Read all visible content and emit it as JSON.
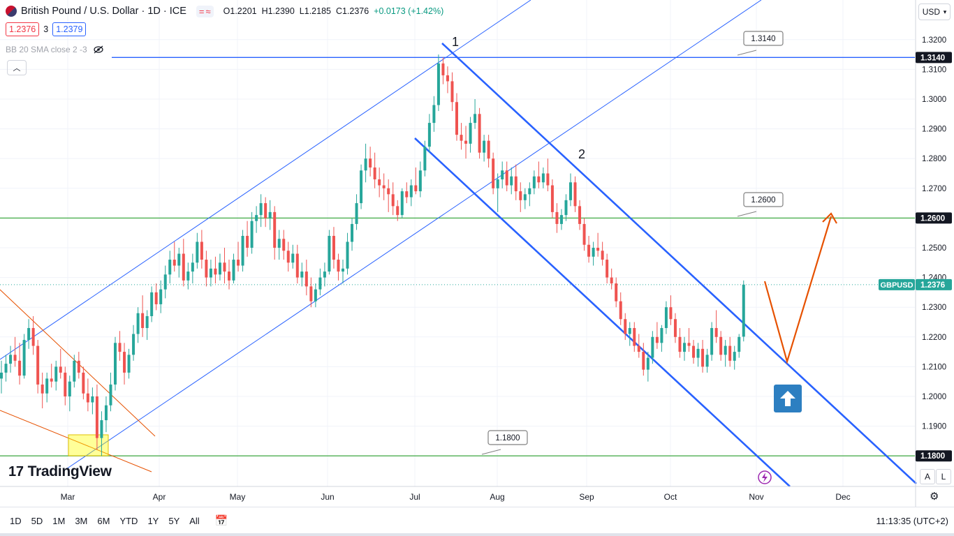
{
  "header": {
    "symbol_title": "British Pound / U.S. Dollar · 1D · ICE",
    "ohlc": {
      "o": "O1.2201",
      "h": "H1.2390",
      "l": "L1.2185",
      "c": "C1.2376",
      "chg": "+0.0173 (+1.42%)"
    },
    "bid": "1.2376",
    "spread": "3",
    "ask": "1.2379",
    "indicator": "BB 20 SMA close 2 -3",
    "currency": "USD"
  },
  "chart_data": {
    "type": "candlestick",
    "symbol": "GBPUSD",
    "last_price": "1.2376",
    "y_ticks": [
      "1.3200",
      "1.3100",
      "1.3000",
      "1.2900",
      "1.2800",
      "1.2700",
      "1.2600",
      "1.2500",
      "1.2400",
      "1.2300",
      "1.2200",
      "1.2100",
      "1.2000",
      "1.1900",
      "1.1800"
    ],
    "x_ticks": [
      "Mar",
      "Apr",
      "May",
      "Jun",
      "Jul",
      "Aug",
      "Sep",
      "Oct",
      "Nov",
      "Dec"
    ],
    "ylim": [
      1.17,
      1.333
    ],
    "horizontal_levels": [
      {
        "value": "1.3140",
        "color": "#2962ff"
      },
      {
        "value": "1.2600",
        "color": "#4caf50"
      },
      {
        "value": "1.1800",
        "color": "#4caf50"
      }
    ],
    "callouts": [
      "1.3140",
      "1.2600",
      "1.1800"
    ],
    "wave_labels": [
      "1",
      "2"
    ],
    "candles": [
      [
        1.206,
        1.212,
        1.201,
        1.208
      ],
      [
        1.208,
        1.214,
        1.205,
        1.211
      ],
      [
        1.211,
        1.217,
        1.208,
        1.214
      ],
      [
        1.214,
        1.22,
        1.21,
        1.212
      ],
      [
        1.212,
        1.218,
        1.204,
        1.207
      ],
      [
        1.207,
        1.221,
        1.206,
        1.219
      ],
      [
        1.219,
        1.226,
        1.216,
        1.223
      ],
      [
        1.223,
        1.227,
        1.214,
        1.217
      ],
      [
        1.217,
        1.219,
        1.201,
        1.204
      ],
      [
        1.204,
        1.208,
        1.196,
        1.201
      ],
      [
        1.201,
        1.208,
        1.198,
        1.206
      ],
      [
        1.206,
        1.211,
        1.203,
        1.205
      ],
      [
        1.205,
        1.212,
        1.202,
        1.21
      ],
      [
        1.21,
        1.216,
        1.206,
        1.208
      ],
      [
        1.208,
        1.21,
        1.197,
        1.2
      ],
      [
        1.2,
        1.207,
        1.195,
        1.205
      ],
      [
        1.205,
        1.214,
        1.203,
        1.212
      ],
      [
        1.212,
        1.215,
        1.206,
        1.208
      ],
      [
        1.208,
        1.21,
        1.199,
        1.201
      ],
      [
        1.201,
        1.206,
        1.195,
        1.198
      ],
      [
        1.198,
        1.203,
        1.194,
        1.2
      ],
      [
        1.2,
        1.204,
        1.182,
        1.186
      ],
      [
        1.186,
        1.195,
        1.18,
        1.192
      ],
      [
        1.192,
        1.2,
        1.188,
        1.197
      ],
      [
        1.197,
        1.208,
        1.195,
        1.204
      ],
      [
        1.204,
        1.22,
        1.202,
        1.218
      ],
      [
        1.218,
        1.222,
        1.212,
        1.215
      ],
      [
        1.215,
        1.218,
        1.204,
        1.208
      ],
      [
        1.208,
        1.216,
        1.206,
        1.214
      ],
      [
        1.214,
        1.224,
        1.212,
        1.221
      ],
      [
        1.221,
        1.23,
        1.218,
        1.228
      ],
      [
        1.228,
        1.234,
        1.22,
        1.223
      ],
      [
        1.223,
        1.229,
        1.219,
        1.227
      ],
      [
        1.227,
        1.237,
        1.225,
        1.235
      ],
      [
        1.235,
        1.238,
        1.229,
        1.231
      ],
      [
        1.231,
        1.239,
        1.228,
        1.236
      ],
      [
        1.236,
        1.244,
        1.233,
        1.241
      ],
      [
        1.241,
        1.249,
        1.238,
        1.246
      ],
      [
        1.246,
        1.252,
        1.242,
        1.244
      ],
      [
        1.244,
        1.25,
        1.24,
        1.248
      ],
      [
        1.248,
        1.253,
        1.237,
        1.239
      ],
      [
        1.239,
        1.245,
        1.236,
        1.242
      ],
      [
        1.242,
        1.248,
        1.238,
        1.245
      ],
      [
        1.245,
        1.255,
        1.243,
        1.252
      ],
      [
        1.252,
        1.256,
        1.243,
        1.246
      ],
      [
        1.246,
        1.249,
        1.237,
        1.24
      ],
      [
        1.24,
        1.246,
        1.237,
        1.243
      ],
      [
        1.243,
        1.247,
        1.238,
        1.241
      ],
      [
        1.241,
        1.248,
        1.239,
        1.245
      ],
      [
        1.245,
        1.25,
        1.238,
        1.242
      ],
      [
        1.242,
        1.246,
        1.236,
        1.239
      ],
      [
        1.239,
        1.248,
        1.238,
        1.246
      ],
      [
        1.246,
        1.252,
        1.242,
        1.244
      ],
      [
        1.244,
        1.256,
        1.242,
        1.254
      ],
      [
        1.254,
        1.259,
        1.247,
        1.25
      ],
      [
        1.25,
        1.262,
        1.248,
        1.259
      ],
      [
        1.259,
        1.264,
        1.255,
        1.261
      ],
      [
        1.261,
        1.268,
        1.257,
        1.265
      ],
      [
        1.265,
        1.267,
        1.257,
        1.26
      ],
      [
        1.26,
        1.266,
        1.256,
        1.262
      ],
      [
        1.262,
        1.264,
        1.246,
        1.25
      ],
      [
        1.25,
        1.256,
        1.246,
        1.253
      ],
      [
        1.253,
        1.256,
        1.246,
        1.249
      ],
      [
        1.249,
        1.252,
        1.242,
        1.245
      ],
      [
        1.245,
        1.251,
        1.243,
        1.248
      ],
      [
        1.248,
        1.251,
        1.238,
        1.24
      ],
      [
        1.24,
        1.245,
        1.237,
        1.242
      ],
      [
        1.242,
        1.246,
        1.234,
        1.237
      ],
      [
        1.237,
        1.24,
        1.23,
        1.232
      ],
      [
        1.232,
        1.238,
        1.23,
        1.236
      ],
      [
        1.236,
        1.243,
        1.234,
        1.24
      ],
      [
        1.24,
        1.245,
        1.237,
        1.242
      ],
      [
        1.242,
        1.256,
        1.241,
        1.254
      ],
      [
        1.254,
        1.257,
        1.243,
        1.246
      ],
      [
        1.246,
        1.248,
        1.239,
        1.242
      ],
      [
        1.242,
        1.246,
        1.238,
        1.243
      ],
      [
        1.243,
        1.255,
        1.241,
        1.252
      ],
      [
        1.252,
        1.26,
        1.249,
        1.258
      ],
      [
        1.258,
        1.268,
        1.256,
        1.265
      ],
      [
        1.265,
        1.278,
        1.263,
        1.276
      ],
      [
        1.276,
        1.285,
        1.272,
        1.28
      ],
      [
        1.28,
        1.284,
        1.274,
        1.277
      ],
      [
        1.277,
        1.282,
        1.27,
        1.273
      ],
      [
        1.273,
        1.277,
        1.267,
        1.271
      ],
      [
        1.271,
        1.275,
        1.266,
        1.27
      ],
      [
        1.27,
        1.273,
        1.262,
        1.268
      ],
      [
        1.268,
        1.272,
        1.261,
        1.264
      ],
      [
        1.264,
        1.266,
        1.259,
        1.261
      ],
      [
        1.261,
        1.27,
        1.26,
        1.269
      ],
      [
        1.269,
        1.272,
        1.265,
        1.267
      ],
      [
        1.267,
        1.273,
        1.264,
        1.271
      ],
      [
        1.271,
        1.277,
        1.268,
        1.269
      ],
      [
        1.269,
        1.279,
        1.267,
        1.276
      ],
      [
        1.276,
        1.286,
        1.274,
        1.284
      ],
      [
        1.284,
        1.295,
        1.282,
        1.292
      ],
      [
        1.292,
        1.301,
        1.289,
        1.298
      ],
      [
        1.298,
        1.315,
        1.296,
        1.312
      ],
      [
        1.312,
        1.314,
        1.305,
        1.308
      ],
      [
        1.308,
        1.311,
        1.302,
        1.306
      ],
      [
        1.306,
        1.309,
        1.296,
        1.299
      ],
      [
        1.299,
        1.302,
        1.286,
        1.288
      ],
      [
        1.288,
        1.292,
        1.283,
        1.286
      ],
      [
        1.286,
        1.291,
        1.28,
        1.285
      ],
      [
        1.285,
        1.294,
        1.282,
        1.292
      ],
      [
        1.292,
        1.3,
        1.29,
        1.295
      ],
      [
        1.295,
        1.297,
        1.28,
        1.282
      ],
      [
        1.282,
        1.288,
        1.279,
        1.286
      ],
      [
        1.286,
        1.288,
        1.277,
        1.28
      ],
      [
        1.28,
        1.282,
        1.268,
        1.27
      ],
      [
        1.27,
        1.275,
        1.262,
        1.273
      ],
      [
        1.273,
        1.279,
        1.27,
        1.276
      ],
      [
        1.276,
        1.279,
        1.269,
        1.271
      ],
      [
        1.271,
        1.277,
        1.268,
        1.274
      ],
      [
        1.274,
        1.278,
        1.266,
        1.269
      ],
      [
        1.269,
        1.272,
        1.262,
        1.266
      ],
      [
        1.266,
        1.27,
        1.263,
        1.268
      ],
      [
        1.268,
        1.272,
        1.264,
        1.27
      ],
      [
        1.27,
        1.276,
        1.268,
        1.274
      ],
      [
        1.274,
        1.279,
        1.27,
        1.272
      ],
      [
        1.272,
        1.277,
        1.27,
        1.275
      ],
      [
        1.275,
        1.28,
        1.269,
        1.271
      ],
      [
        1.271,
        1.273,
        1.26,
        1.262
      ],
      [
        1.262,
        1.265,
        1.255,
        1.258
      ],
      [
        1.258,
        1.263,
        1.256,
        1.261
      ],
      [
        1.261,
        1.268,
        1.259,
        1.266
      ],
      [
        1.266,
        1.275,
        1.264,
        1.272
      ],
      [
        1.272,
        1.274,
        1.262,
        1.264
      ],
      [
        1.264,
        1.266,
        1.256,
        1.258
      ],
      [
        1.258,
        1.26,
        1.249,
        1.251
      ],
      [
        1.251,
        1.254,
        1.245,
        1.247
      ],
      [
        1.247,
        1.252,
        1.244,
        1.25
      ],
      [
        1.25,
        1.255,
        1.247,
        1.249
      ],
      [
        1.249,
        1.252,
        1.244,
        1.246
      ],
      [
        1.246,
        1.248,
        1.238,
        1.24
      ],
      [
        1.24,
        1.243,
        1.236,
        1.238
      ],
      [
        1.238,
        1.24,
        1.23,
        1.232
      ],
      [
        1.232,
        1.235,
        1.224,
        1.226
      ],
      [
        1.226,
        1.228,
        1.219,
        1.221
      ],
      [
        1.221,
        1.225,
        1.217,
        1.223
      ],
      [
        1.223,
        1.225,
        1.215,
        1.217
      ],
      [
        1.217,
        1.221,
        1.213,
        1.215
      ],
      [
        1.215,
        1.218,
        1.207,
        1.209
      ],
      [
        1.209,
        1.215,
        1.205,
        1.213
      ],
      [
        1.213,
        1.222,
        1.211,
        1.22
      ],
      [
        1.22,
        1.225,
        1.216,
        1.218
      ],
      [
        1.218,
        1.224,
        1.215,
        1.223
      ],
      [
        1.223,
        1.232,
        1.221,
        1.23
      ],
      [
        1.23,
        1.234,
        1.224,
        1.226
      ],
      [
        1.226,
        1.228,
        1.218,
        1.22
      ],
      [
        1.22,
        1.223,
        1.213,
        1.215
      ],
      [
        1.215,
        1.22,
        1.212,
        1.218
      ],
      [
        1.218,
        1.223,
        1.215,
        1.217
      ],
      [
        1.217,
        1.219,
        1.211,
        1.213
      ],
      [
        1.213,
        1.218,
        1.21,
        1.216
      ],
      [
        1.216,
        1.219,
        1.208,
        1.21
      ],
      [
        1.21,
        1.216,
        1.208,
        1.214
      ],
      [
        1.214,
        1.225,
        1.212,
        1.223
      ],
      [
        1.223,
        1.229,
        1.218,
        1.22
      ],
      [
        1.22,
        1.222,
        1.212,
        1.214
      ],
      [
        1.214,
        1.219,
        1.21,
        1.217
      ],
      [
        1.217,
        1.22,
        1.21,
        1.212
      ],
      [
        1.212,
        1.217,
        1.209,
        1.215
      ],
      [
        1.215,
        1.221,
        1.213,
        1.22
      ],
      [
        1.2201,
        1.239,
        1.2185,
        1.2376
      ]
    ]
  },
  "ui": {
    "ranges": [
      "1D",
      "5D",
      "1M",
      "3M",
      "6M",
      "YTD",
      "1Y",
      "5Y",
      "All"
    ],
    "clock": "11:13:35 (UTC+2)",
    "brand": "TradingView",
    "scale_buttons": [
      "A",
      "L"
    ]
  },
  "colors": {
    "up": "#26a69a",
    "down": "#ef5350",
    "channel": "#2962ff",
    "level_green": "#4caf50",
    "projection": "#e65100",
    "highlight": "#ffff00"
  }
}
